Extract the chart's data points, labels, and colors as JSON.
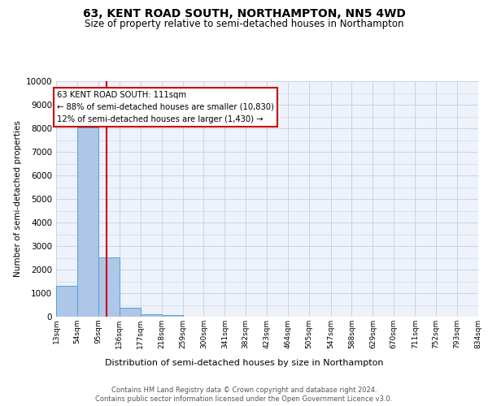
{
  "title": "63, KENT ROAD SOUTH, NORTHAMPTON, NN5 4WD",
  "subtitle": "Size of property relative to semi-detached houses in Northampton",
  "xlabel": "Distribution of semi-detached houses by size in Northampton",
  "ylabel": "Number of semi-detached properties",
  "footer1": "Contains HM Land Registry data © Crown copyright and database right 2024.",
  "footer2": "Contains public sector information licensed under the Open Government Licence v3.0.",
  "annotation_title": "63 KENT ROAD SOUTH: 111sqm",
  "annotation_line1": "← 88% of semi-detached houses are smaller (10,830)",
  "annotation_line2": "12% of semi-detached houses are larger (1,430) →",
  "property_size": 111,
  "bar_color": "#aec6e8",
  "bar_edge_color": "#5a9fd4",
  "redline_color": "#cc0000",
  "annotation_box_color": "#cc0000",
  "grid_color": "#c8d4e8",
  "background_color": "#eef2fa",
  "bin_edges": [
    13,
    54,
    95,
    136,
    177,
    218,
    259,
    300,
    341,
    382,
    423,
    464,
    505,
    547,
    588,
    629,
    670,
    711,
    752,
    793,
    834
  ],
  "bin_labels": [
    "13sqm",
    "54sqm",
    "95sqm",
    "136sqm",
    "177sqm",
    "218sqm",
    "259sqm",
    "300sqm",
    "341sqm",
    "382sqm",
    "423sqm",
    "464sqm",
    "505sqm",
    "547sqm",
    "588sqm",
    "629sqm",
    "670sqm",
    "711sqm",
    "752sqm",
    "793sqm",
    "834sqm"
  ],
  "bar_heights": [
    1300,
    8050,
    2520,
    380,
    120,
    80,
    0,
    0,
    0,
    0,
    0,
    0,
    0,
    0,
    0,
    0,
    0,
    0,
    0,
    0
  ],
  "ylim": [
    0,
    10000
  ],
  "yticks": [
    0,
    1000,
    2000,
    3000,
    4000,
    5000,
    6000,
    7000,
    8000,
    9000,
    10000
  ]
}
